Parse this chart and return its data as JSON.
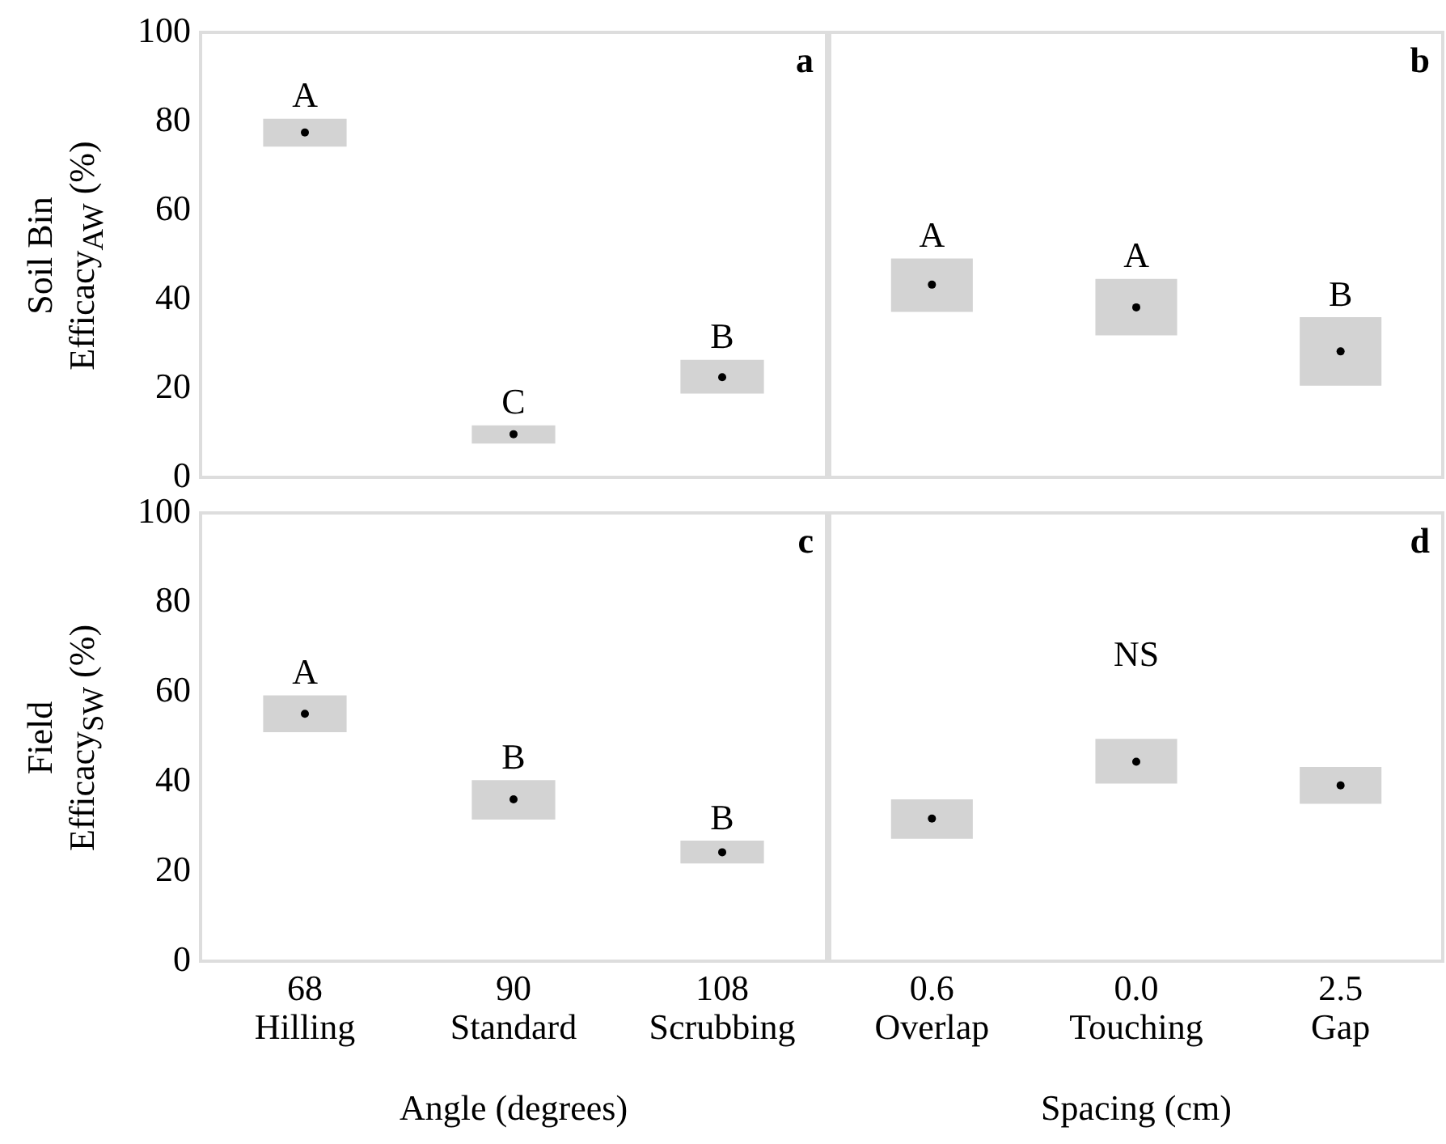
{
  "chart_data": [
    {
      "type": "bar",
      "ylabel": "Soil Bin\nEfficacy$_{AW}$ (%)",
      "categories": [
        "68\nHilling",
        "90\nStandard",
        "108\nScrubbing"
      ],
      "ylim": [
        0,
        100
      ],
      "yticks": [
        0,
        20,
        40,
        60,
        80,
        100
      ],
      "tick_labels": "y",
      "series": [
        {
          "type": "bar",
          "color": "#d3d3d3",
          "base": [
            74.3,
            7.6,
            18.8
          ],
          "values": [
            6.3,
            4.1,
            7.6
          ]
        },
        {
          "type": "scatter",
          "color": "#000000",
          "marker": "circle",
          "x": [
            "68\nHilling",
            "90\nStandard",
            "108\nScrubbing"
          ],
          "values": [
            77.5,
            9.7,
            22.5
          ]
        }
      ],
      "annotations": [
        "a",
        {
          "text": "A",
          "x": "68\nHilling",
          "y": 80.6
        },
        {
          "text": "C",
          "x": "90\nStandard",
          "y": 11.7
        },
        {
          "text": "B",
          "x": "108\nScrubbing",
          "y": 26.4
        }
      ]
    },
    {
      "type": "bar",
      "categories": [
        "0.6\nOverlap",
        "0.0\nTouching",
        "2.5\nGap"
      ],
      "ylim": [
        0,
        100
      ],
      "yticks": [
        0,
        20,
        40,
        60,
        80,
        100
      ],
      "tick_labels": false,
      "series": [
        {
          "type": "bar",
          "color": "#d3d3d3",
          "base": [
            37.2,
            31.9,
            20.6
          ],
          "values": [
            12.0,
            12.7,
            15.4
          ]
        },
        {
          "type": "scatter",
          "color": "#000000",
          "marker": "circle",
          "x": [
            "0.6\nOverlap",
            "0.0\nTouching",
            "2.5\nGap"
          ],
          "values": [
            43.3,
            38.2,
            28.3
          ]
        }
      ],
      "annotations": [
        "b",
        {
          "text": "A",
          "x": "0.6\nOverlap",
          "y": 49.2
        },
        {
          "text": "A",
          "x": "0.0\nTouching",
          "y": 44.6
        },
        {
          "text": "B",
          "x": "2.5\nGap",
          "y": 36
        }
      ]
    },
    {
      "type": "bar",
      "ylabel": "Field\nEfficacy$_{SW}$ (%)",
      "xlabel": "Angle (degrees)",
      "categories": [
        "68\nHilling",
        "90\nStandard",
        "108\nScrubbing"
      ],
      "ylim": [
        0,
        100
      ],
      "yticks": [
        0,
        20,
        40,
        60,
        80,
        100
      ],
      "series": [
        {
          "type": "bar",
          "color": "#d3d3d3",
          "base": [
            51.1,
            31.6,
            21.8
          ],
          "values": [
            8.2,
            8.8,
            5.1
          ]
        },
        {
          "type": "scatter",
          "color": "#000000",
          "marker": "circle",
          "x": [
            "68\nHilling",
            "90\nStandard",
            "108\nScrubbing"
          ],
          "values": [
            55.2,
            36.1,
            24.3
          ]
        }
      ],
      "annotations": [
        "c",
        {
          "text": "A",
          "x": "68\nHilling",
          "y": 59.3
        },
        {
          "text": "B",
          "x": "90\nStandard",
          "y": 40.4
        },
        {
          "text": "B",
          "x": "108\nScrubbing",
          "y": 26.9
        }
      ]
    },
    {
      "type": "bar",
      "xlabel": "Spacing (cm)",
      "categories": [
        "0.6\nOverlap",
        "0.0\nTouching",
        "2.5\nGap"
      ],
      "ylim": [
        0,
        100
      ],
      "yticks": [
        0,
        20,
        40,
        60,
        80,
        100
      ],
      "tick_labels": "x",
      "series": [
        {
          "type": "bar",
          "color": "#d3d3d3",
          "base": [
            27.3,
            39.6,
            35.1
          ],
          "values": [
            8.8,
            10.0,
            8.2
          ]
        },
        {
          "type": "scatter",
          "color": "#000000",
          "marker": "circle",
          "x": [
            "0.6\nOverlap",
            "0.0\nTouching",
            "2.5\nGap"
          ],
          "values": [
            31.8,
            44.5,
            39.2
          ]
        }
      ],
      "annotations": [
        "d",
        "NS"
      ]
    }
  ]
}
